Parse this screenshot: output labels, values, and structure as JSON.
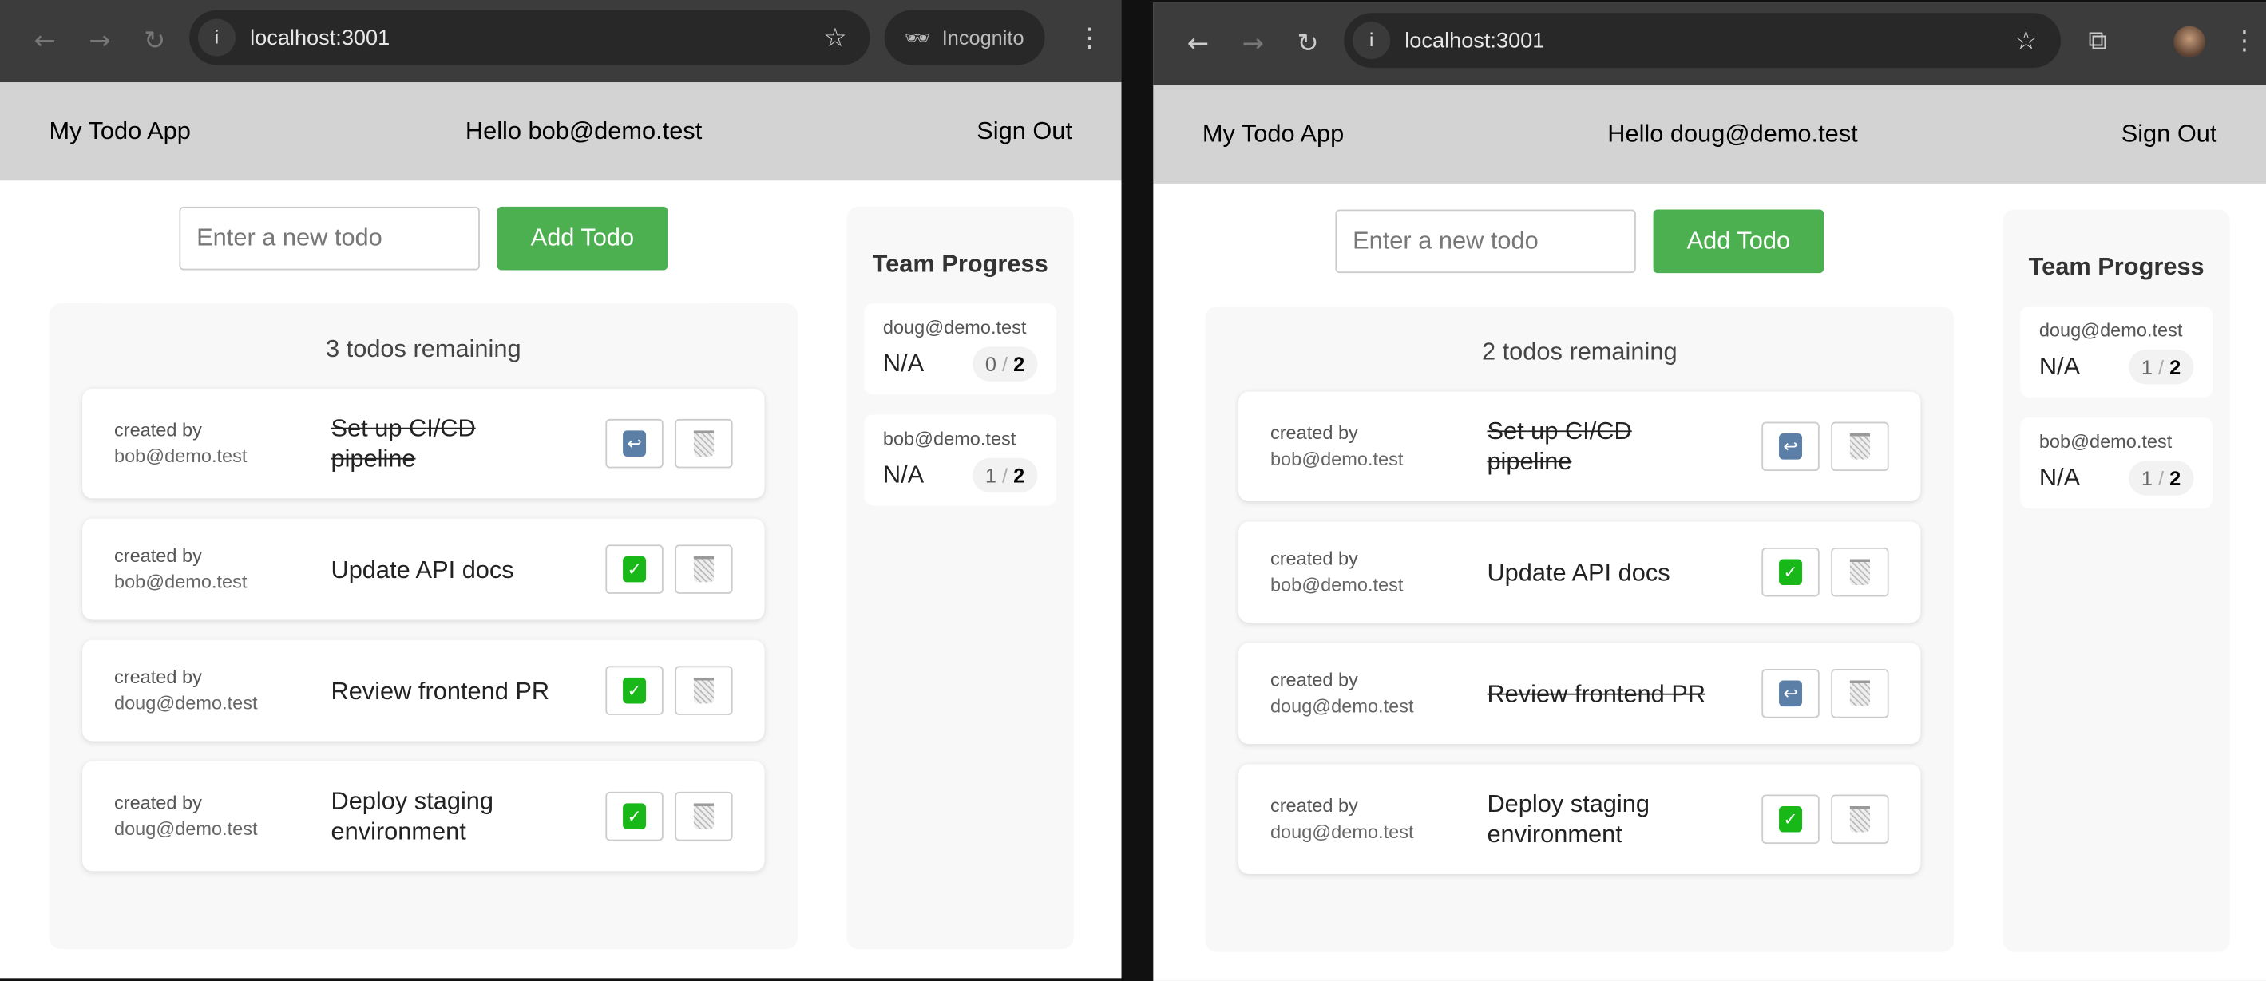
{
  "windows": [
    {
      "url": "localhost:3001",
      "incognito_label": "Incognito",
      "app_title": "My Todo App",
      "greeting": "Hello bob@demo.test",
      "sign_out": "Sign Out",
      "input_placeholder": "Enter a new todo",
      "add_label": "Add Todo",
      "remaining": "3 todos remaining",
      "todos": [
        {
          "created_label": "created by",
          "creator": "bob@demo.test",
          "title": "Set up CI/CD pipeline",
          "completed": true
        },
        {
          "created_label": "created by",
          "creator": "bob@demo.test",
          "title": "Update API docs",
          "completed": false
        },
        {
          "created_label": "created by",
          "creator": "doug@demo.test",
          "title": "Review frontend PR",
          "completed": false
        },
        {
          "created_label": "created by",
          "creator": "doug@demo.test",
          "title": "Deploy staging environment",
          "completed": false
        }
      ],
      "team_title": "Team Progress",
      "progress": [
        {
          "email": "doug@demo.test",
          "value": "N/A",
          "done": "0",
          "total": "2"
        },
        {
          "email": "bob@demo.test",
          "value": "N/A",
          "done": "1",
          "total": "2"
        }
      ]
    },
    {
      "url": "localhost:3001",
      "app_title": "My Todo App",
      "greeting": "Hello doug@demo.test",
      "sign_out": "Sign Out",
      "input_placeholder": "Enter a new todo",
      "add_label": "Add Todo",
      "remaining": "2 todos remaining",
      "todos": [
        {
          "created_label": "created by",
          "creator": "bob@demo.test",
          "title": "Set up CI/CD pipeline",
          "completed": true
        },
        {
          "created_label": "created by",
          "creator": "bob@demo.test",
          "title": "Update API docs",
          "completed": false
        },
        {
          "created_label": "created by",
          "creator": "doug@demo.test",
          "title": "Review frontend PR",
          "completed": true
        },
        {
          "created_label": "created by",
          "creator": "doug@demo.test",
          "title": "Deploy staging environment",
          "completed": false
        }
      ],
      "team_title": "Team Progress",
      "progress": [
        {
          "email": "doug@demo.test",
          "value": "N/A",
          "done": "1",
          "total": "2"
        },
        {
          "email": "bob@demo.test",
          "value": "N/A",
          "done": "1",
          "total": "2"
        }
      ]
    }
  ],
  "colors": {
    "accent": "#4caf50",
    "header_bg": "#d3d3d3",
    "chrome_bg": "#3c3c3c"
  }
}
